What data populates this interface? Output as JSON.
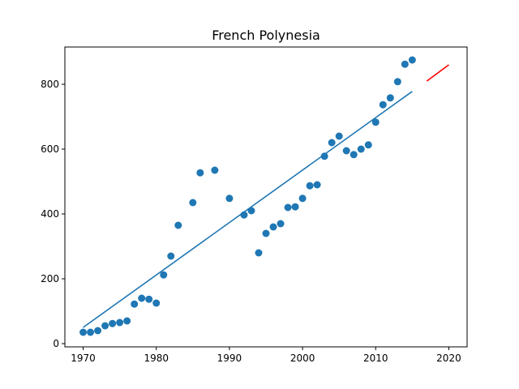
{
  "chart_data": {
    "type": "scatter",
    "title": "French Polynesia",
    "xlabel": "",
    "ylabel": "",
    "xlim": [
      1967.5,
      2022.5
    ],
    "ylim": [
      -10,
      915
    ],
    "x_ticks": [
      1970,
      1980,
      1990,
      2000,
      2010,
      2020
    ],
    "y_ticks": [
      0,
      200,
      400,
      600,
      800
    ],
    "grid": false,
    "series": [
      {
        "kind": "scatter",
        "color": "#1f77b4",
        "points": [
          [
            1970,
            35
          ],
          [
            1971,
            35
          ],
          [
            1972,
            40
          ],
          [
            1973,
            55
          ],
          [
            1974,
            62
          ],
          [
            1975,
            65
          ],
          [
            1976,
            70
          ],
          [
            1977,
            122
          ],
          [
            1978,
            140
          ],
          [
            1979,
            137
          ],
          [
            1980,
            125
          ],
          [
            1981,
            212
          ],
          [
            1982,
            270
          ],
          [
            1983,
            365
          ],
          [
            1985,
            435
          ],
          [
            1986,
            527
          ],
          [
            1988,
            535
          ],
          [
            1990,
            448
          ],
          [
            1992,
            397
          ],
          [
            1993,
            410
          ],
          [
            1994,
            280
          ],
          [
            1995,
            340
          ],
          [
            1996,
            360
          ],
          [
            1997,
            370
          ],
          [
            1998,
            420
          ],
          [
            1999,
            422
          ],
          [
            2000,
            448
          ],
          [
            2001,
            487
          ],
          [
            2002,
            490
          ],
          [
            2003,
            578
          ],
          [
            2004,
            620
          ],
          [
            2005,
            640
          ],
          [
            2006,
            595
          ],
          [
            2007,
            583
          ],
          [
            2008,
            600
          ],
          [
            2009,
            613
          ],
          [
            2010,
            683
          ],
          [
            2011,
            737
          ],
          [
            2012,
            758
          ],
          [
            2013,
            808
          ],
          [
            2014,
            862
          ],
          [
            2015,
            875
          ]
        ]
      },
      {
        "kind": "line",
        "color": "#1f77b4",
        "points": [
          [
            1970,
            50
          ],
          [
            2015,
            778
          ]
        ]
      },
      {
        "kind": "line",
        "color": "#ff0000",
        "points": [
          [
            2017,
            810
          ],
          [
            2020,
            860
          ]
        ]
      }
    ]
  }
}
